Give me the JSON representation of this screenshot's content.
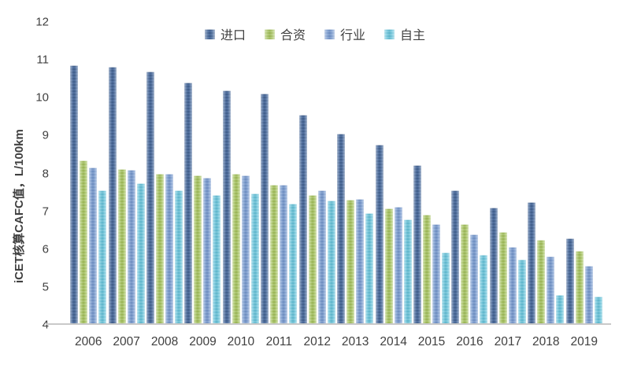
{
  "chart_data": {
    "type": "bar",
    "title": "",
    "xlabel": "",
    "ylabel": "iCET核算CAFC值，L/100km",
    "ylim": [
      4,
      12
    ],
    "yticks": [
      4,
      5,
      6,
      7,
      8,
      9,
      10,
      11,
      12
    ],
    "grid": false,
    "legend_position": "top-center",
    "categories": [
      "2006",
      "2007",
      "2008",
      "2009",
      "2010",
      "2011",
      "2012",
      "2013",
      "2014",
      "2015",
      "2016",
      "2017",
      "2018",
      "2019"
    ],
    "series": [
      {
        "name": "进口",
        "key": "import",
        "color": "#3F5F8F",
        "color_light": "#4E6FA0",
        "values": [
          10.85,
          10.82,
          10.7,
          10.4,
          10.2,
          10.1,
          9.55,
          9.05,
          8.75,
          8.22,
          7.55,
          7.1,
          7.25,
          6.28
        ]
      },
      {
        "name": "合资",
        "key": "joint-venture",
        "color": "#9FBC58",
        "color_light": "#AFC971",
        "values": [
          8.35,
          8.12,
          8.0,
          7.95,
          8.0,
          7.7,
          7.42,
          7.3,
          7.08,
          6.9,
          6.65,
          6.45,
          6.25,
          5.95
        ]
      },
      {
        "name": "行业",
        "key": "industry",
        "color": "#7193C8",
        "color_light": "#83A2D2",
        "values": [
          8.15,
          8.1,
          8.0,
          7.88,
          7.95,
          7.7,
          7.55,
          7.32,
          7.12,
          6.65,
          6.4,
          6.05,
          5.8,
          5.55
        ]
      },
      {
        "name": "自主",
        "key": "domestic",
        "color": "#62BDD4",
        "color_light": "#79C9DD",
        "values": [
          7.55,
          7.75,
          7.55,
          7.42,
          7.48,
          7.2,
          7.28,
          6.95,
          6.78,
          5.92,
          5.85,
          5.73,
          4.8,
          4.75
        ]
      }
    ],
    "colors": {
      "axis_text": "#404040",
      "baseline": "#C9C9C9",
      "background": "#FFFFFF"
    }
  }
}
